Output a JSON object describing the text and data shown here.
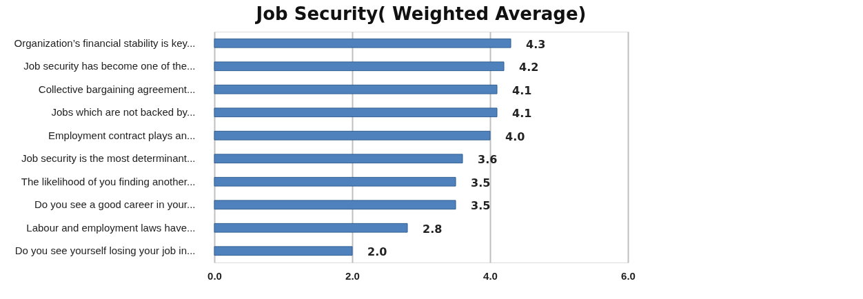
{
  "chart_data": {
    "type": "bar",
    "orientation": "horizontal",
    "title": "Job Security( Weighted Average)",
    "categories": [
      "Organization’s financial stability is key...",
      "Job security has become one of the...",
      "Collective bargaining agreement...",
      "Jobs which are not backed by...",
      "Employment contract plays an...",
      "Job security is the most determinant...",
      "The likelihood of you finding another...",
      "Do you see a good career in your...",
      "Labour and employment laws have...",
      "Do you see yourself losing your job in..."
    ],
    "values": [
      4.3,
      4.2,
      4.1,
      4.1,
      4.0,
      3.6,
      3.5,
      3.5,
      2.8,
      2.0
    ],
    "value_labels": [
      "4.3",
      "4.2",
      "4.1",
      "4.1",
      "4.0",
      "3.6",
      "3.5",
      "3.5",
      "2.8",
      "2.0"
    ],
    "color": "#4f81bd",
    "xlim": [
      0,
      6
    ],
    "xticks": [
      {
        "value": 0,
        "label": "0.0"
      },
      {
        "value": 2,
        "label": "2.0"
      },
      {
        "value": 4,
        "label": "4.0"
      },
      {
        "value": 6,
        "label": "6.0"
      }
    ],
    "grid": "x"
  }
}
